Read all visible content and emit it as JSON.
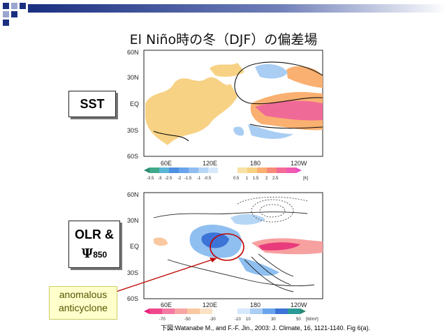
{
  "slide": {
    "title": "El Niño時の冬（DJF）の偏差場"
  },
  "panels": {
    "sst": {
      "label": "SST",
      "lat_labels": [
        "60N",
        "30N",
        "EQ",
        "30S",
        "60S"
      ],
      "lon_labels": [
        "60E",
        "120E",
        "180",
        "120W"
      ],
      "colorbar_ticks": [
        "-3.5",
        "-3",
        "-2.5",
        "-2",
        "-1.5",
        "-1",
        "-0.5",
        "0.5",
        "1",
        "1.5",
        "2",
        "2.5",
        "[K]"
      ]
    },
    "olr": {
      "label_line1": "OLR &",
      "label_line2_symbol": "Ψ",
      "label_line2_sub": "850",
      "lat_labels": [
        "60N",
        "30N",
        "EQ",
        "30S",
        "60S"
      ],
      "lon_labels": [
        "60E",
        "120E",
        "180",
        "120W"
      ],
      "colorbar_ticks": [
        "-70",
        "-50",
        "-30",
        "-10",
        "10",
        "30",
        "50",
        "[W/m²]"
      ]
    }
  },
  "callout": {
    "line1": "anomalous",
    "line2": "anticyclone"
  },
  "citation": "下図:Watanabe M., and F.-F. Jin., 2003:  J. Climate, 16, 1121-1140. Fig 6(a).",
  "colors": {
    "warm": "#f7c86a",
    "warm_strong": "#f04c8c",
    "cool": "#8fbff0",
    "cool_strong": "#3b73d6",
    "title_bar": "#1a2f80",
    "callout_bg": "#ffffcc",
    "arrow": "#c00000"
  }
}
